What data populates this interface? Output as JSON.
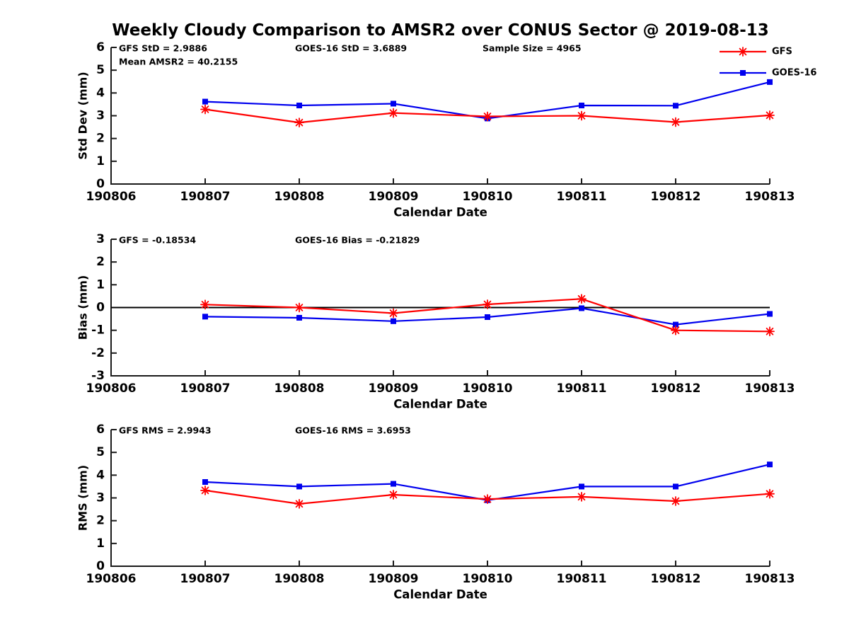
{
  "title": "Weekly Cloudy Comparison to AMSR2 over CONUS Sector @ 2019-08-13",
  "colors": {
    "gfs": "#FF0000",
    "goes16": "#0000EE",
    "axis": "#1A1A1A",
    "text": "#000000",
    "zero_line": "#000000"
  },
  "legend": {
    "position": "top-right",
    "entries": [
      {
        "label": "GFS",
        "series": "gfs",
        "marker": "asterisk"
      },
      {
        "label": "GOES-16",
        "series": "goes16",
        "marker": "square"
      }
    ]
  },
  "chart_data": [
    {
      "id": "std-dev",
      "type": "line",
      "ylabel": "Std Dev (mm)",
      "xlabel": "Calendar Date",
      "ylim": [
        0,
        6
      ],
      "yticks": [
        0,
        1,
        2,
        3,
        4,
        5,
        6
      ],
      "x_categories": [
        "190806",
        "190807",
        "190808",
        "190809",
        "190810",
        "190811",
        "190812",
        "190813"
      ],
      "grid": false,
      "zero_line": false,
      "show_legend": true,
      "annotations": [
        {
          "slot": "left",
          "text": "GFS StD = 2.9886"
        },
        {
          "slot": "left2",
          "text": "Mean AMSR2 = 40.2155"
        },
        {
          "slot": "mid",
          "text": "GOES-16 StD = 3.6889"
        },
        {
          "slot": "right",
          "text": "Sample Size = 4965"
        }
      ],
      "series": [
        {
          "name": "GOES-16",
          "color_key": "goes16",
          "marker": "square",
          "x": [
            "190807",
            "190808",
            "190809",
            "190810",
            "190811",
            "190812",
            "190813"
          ],
          "values": [
            3.62,
            3.45,
            3.53,
            2.88,
            3.45,
            3.44,
            4.48
          ]
        },
        {
          "name": "GFS",
          "color_key": "gfs",
          "marker": "asterisk",
          "x": [
            "190807",
            "190808",
            "190809",
            "190810",
            "190811",
            "190812",
            "190813"
          ],
          "values": [
            3.28,
            2.7,
            3.12,
            2.97,
            3.0,
            2.72,
            3.02
          ]
        }
      ]
    },
    {
      "id": "bias",
      "type": "line",
      "ylabel": "Bias (mm)",
      "xlabel": "Calendar Date",
      "ylim": [
        -3,
        3
      ],
      "yticks": [
        -3,
        -2,
        -1,
        0,
        1,
        2,
        3
      ],
      "x_categories": [
        "190806",
        "190807",
        "190808",
        "190809",
        "190810",
        "190811",
        "190812",
        "190813"
      ],
      "grid": false,
      "zero_line": true,
      "show_legend": false,
      "annotations": [
        {
          "slot": "left",
          "text": "GFS = -0.18534"
        },
        {
          "slot": "mid",
          "text": "GOES-16 Bias  = -0.21829"
        }
      ],
      "series": [
        {
          "name": "GOES-16",
          "color_key": "goes16",
          "marker": "square",
          "x": [
            "190807",
            "190808",
            "190809",
            "190810",
            "190811",
            "190812",
            "190813"
          ],
          "values": [
            -0.4,
            -0.45,
            -0.6,
            -0.42,
            -0.03,
            -0.75,
            -0.28
          ]
        },
        {
          "name": "GFS",
          "color_key": "gfs",
          "marker": "asterisk",
          "x": [
            "190807",
            "190808",
            "190809",
            "190810",
            "190811",
            "190812",
            "190813"
          ],
          "values": [
            0.13,
            0.0,
            -0.25,
            0.14,
            0.38,
            -1.0,
            -1.05
          ]
        }
      ]
    },
    {
      "id": "rms",
      "type": "line",
      "ylabel": "RMS (mm)",
      "xlabel": "Calendar Date",
      "ylim": [
        0,
        6
      ],
      "yticks": [
        0,
        1,
        2,
        3,
        4,
        5,
        6
      ],
      "x_categories": [
        "190806",
        "190807",
        "190808",
        "190809",
        "190810",
        "190811",
        "190812",
        "190813"
      ],
      "grid": false,
      "zero_line": false,
      "show_legend": false,
      "annotations": [
        {
          "slot": "left",
          "text": "GFS RMS = 2.9943"
        },
        {
          "slot": "mid",
          "text": "GOES-16 RMS = 3.6953"
        }
      ],
      "series": [
        {
          "name": "GOES-16",
          "color_key": "goes16",
          "marker": "square",
          "x": [
            "190807",
            "190808",
            "190809",
            "190810",
            "190811",
            "190812",
            "190813"
          ],
          "values": [
            3.7,
            3.5,
            3.62,
            2.9,
            3.5,
            3.5,
            4.47
          ]
        },
        {
          "name": "GFS",
          "color_key": "gfs",
          "marker": "asterisk",
          "x": [
            "190807",
            "190808",
            "190809",
            "190810",
            "190811",
            "190812",
            "190813"
          ],
          "values": [
            3.33,
            2.74,
            3.14,
            2.95,
            3.05,
            2.86,
            3.18
          ]
        }
      ]
    }
  ]
}
